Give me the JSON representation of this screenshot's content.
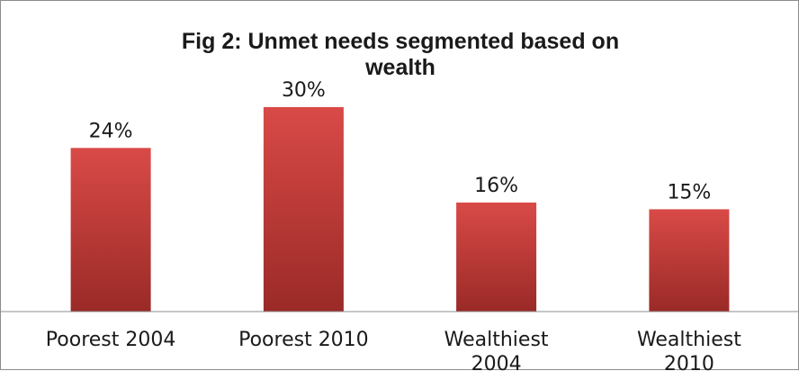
{
  "chart_data": {
    "type": "bar",
    "title": "Fig 2: Unmet needs segmented based on wealth",
    "title_lines": [
      "Fig 2: Unmet needs segmented based on",
      "wealth"
    ],
    "categories": [
      "Poorest 2004",
      "Poorest 2010",
      "Wealthiest 2004",
      "Wealthiest 2010"
    ],
    "category_lines": [
      [
        "Poorest 2004"
      ],
      [
        "Poorest 2010"
      ],
      [
        "Wealthiest",
        "2004"
      ],
      [
        "Wealthiest",
        "2010"
      ]
    ],
    "values": [
      24,
      30,
      16,
      15
    ],
    "data_labels": [
      "24%",
      "30%",
      "16%",
      "15%"
    ],
    "unit": "%",
    "xlabel": "",
    "ylabel": "",
    "ylim": [
      0,
      35
    ],
    "grid": false,
    "legend": "none",
    "colors": {
      "bar_top": "#d94a47",
      "bar_bottom": "#9a2a27",
      "axis": "#8c8c8c",
      "text": "#1a1a1a"
    }
  }
}
